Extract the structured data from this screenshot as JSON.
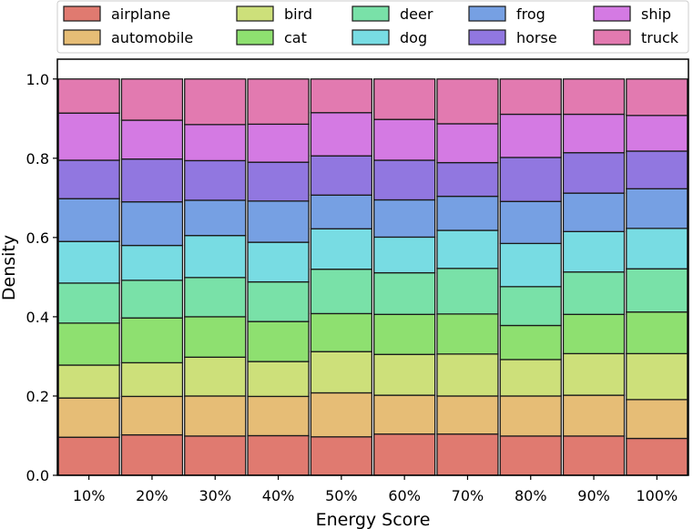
{
  "chart_data": {
    "type": "bar",
    "stacked": true,
    "xlabel": "Energy Score",
    "ylabel": "Density",
    "ylim": [
      0,
      1.05
    ],
    "yticks": [
      0.0,
      0.2,
      0.4,
      0.6,
      0.8,
      1.0
    ],
    "ytick_labels": [
      "0.0",
      "0.2",
      "0.4",
      "0.6",
      "0.8",
      "1.0"
    ],
    "categories": [
      "10%",
      "20%",
      "30%",
      "40%",
      "50%",
      "60%",
      "70%",
      "80%",
      "90%",
      "100%"
    ],
    "grid": false,
    "legend_position": "top",
    "series": [
      {
        "name": "airplane",
        "color": "#E07A70",
        "values": [
          0.096,
          0.102,
          0.099,
          0.1,
          0.097,
          0.104,
          0.104,
          0.099,
          0.099,
          0.093
        ]
      },
      {
        "name": "automobile",
        "color": "#E6BD76",
        "values": [
          0.099,
          0.097,
          0.101,
          0.099,
          0.111,
          0.098,
          0.096,
          0.101,
          0.103,
          0.098
        ]
      },
      {
        "name": "bird",
        "color": "#CDE07A",
        "values": [
          0.083,
          0.085,
          0.098,
          0.088,
          0.104,
          0.103,
          0.106,
          0.092,
          0.105,
          0.116
        ]
      },
      {
        "name": "cat",
        "color": "#8EE070",
        "values": [
          0.106,
          0.113,
          0.102,
          0.101,
          0.096,
          0.101,
          0.101,
          0.086,
          0.099,
          0.105
        ]
      },
      {
        "name": "deer",
        "color": "#79E1A8",
        "values": [
          0.101,
          0.095,
          0.099,
          0.1,
          0.112,
          0.105,
          0.115,
          0.098,
          0.107,
          0.109
        ]
      },
      {
        "name": "dog",
        "color": "#78DCE3",
        "values": [
          0.105,
          0.088,
          0.106,
          0.1,
          0.102,
          0.09,
          0.096,
          0.109,
          0.102,
          0.102
        ]
      },
      {
        "name": "frog",
        "color": "#76A0E3",
        "values": [
          0.108,
          0.11,
          0.089,
          0.104,
          0.085,
          0.094,
          0.086,
          0.106,
          0.097,
          0.1
        ]
      },
      {
        "name": "horse",
        "color": "#9177E0",
        "values": [
          0.097,
          0.108,
          0.1,
          0.098,
          0.099,
          0.1,
          0.085,
          0.111,
          0.102,
          0.095
        ]
      },
      {
        "name": "ship",
        "color": "#D47AE3",
        "values": [
          0.119,
          0.098,
          0.091,
          0.096,
          0.109,
          0.103,
          0.098,
          0.109,
          0.097,
          0.09
        ]
      },
      {
        "name": "truck",
        "color": "#E27AB0",
        "values": [
          0.086,
          0.104,
          0.115,
          0.114,
          0.085,
          0.102,
          0.113,
          0.089,
          0.089,
          0.092
        ]
      }
    ]
  }
}
